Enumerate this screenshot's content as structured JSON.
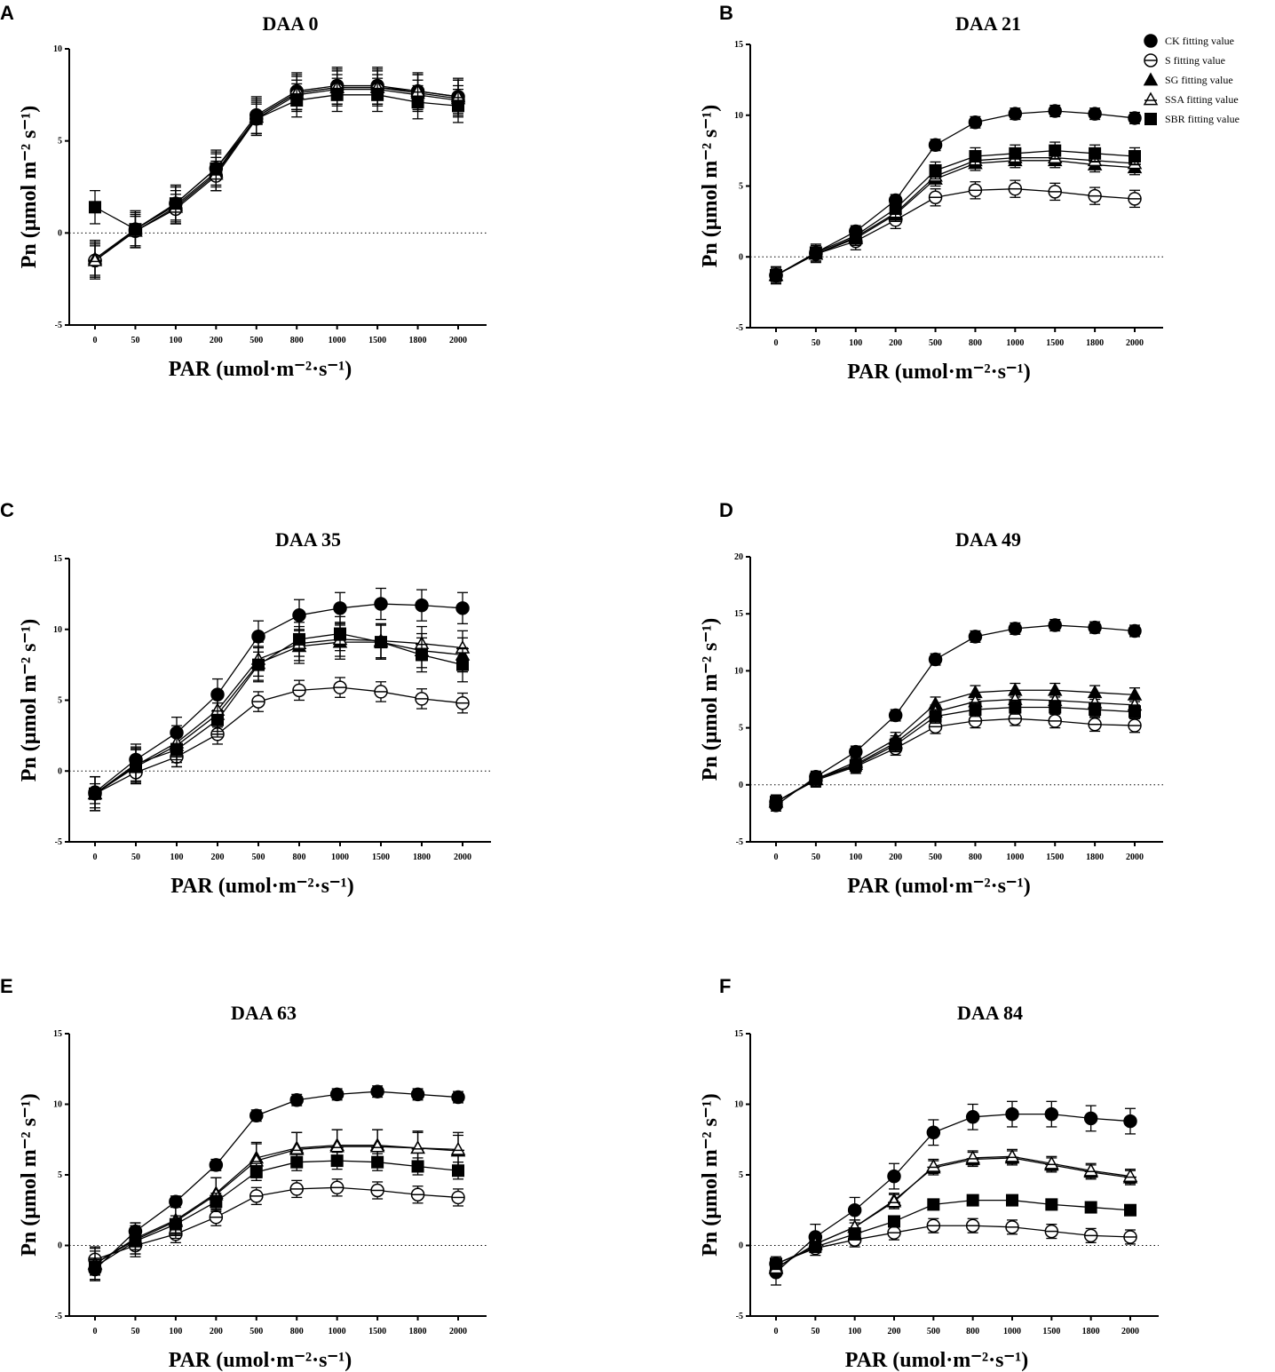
{
  "chart_data": [
    {
      "panel": "A",
      "type": "line",
      "title": "DAA 0",
      "ylim": [
        -5,
        10
      ],
      "yticks": [
        -5,
        0,
        5,
        10
      ],
      "series": [
        {
          "name": "CK fitting value",
          "values": [
            -1.5,
            0.2,
            1.6,
            3.5,
            6.4,
            7.7,
            8.0,
            8.0,
            7.7,
            7.4
          ],
          "err": 1.0
        },
        {
          "name": "S fitting value",
          "values": [
            -1.5,
            0.1,
            1.3,
            3.1,
            6.2,
            7.5,
            7.8,
            7.8,
            7.5,
            7.2
          ],
          "err": 0.8
        },
        {
          "name": "SG fitting value",
          "values": [
            -1.4,
            0.2,
            1.5,
            3.3,
            6.3,
            7.6,
            7.9,
            7.9,
            7.6,
            7.3
          ],
          "err": 1.0
        },
        {
          "name": "SSA fitting value",
          "values": [
            -1.5,
            0.1,
            1.4,
            3.2,
            6.3,
            7.6,
            7.9,
            7.9,
            7.7,
            7.4
          ],
          "err": 0.9
        },
        {
          "name": "SBR fitting value",
          "values": [
            1.4,
            0.2,
            1.6,
            3.5,
            6.2,
            7.2,
            7.5,
            7.5,
            7.1,
            6.9
          ],
          "err": 0.9
        }
      ]
    },
    {
      "panel": "B",
      "type": "line",
      "title": "DAA 21",
      "ylim": [
        -5,
        15
      ],
      "yticks": [
        -5,
        0,
        5,
        10,
        15
      ],
      "series": [
        {
          "name": "CK fitting value",
          "values": [
            -1.3,
            0.3,
            1.8,
            4.0,
            7.9,
            9.5,
            10.1,
            10.3,
            10.1,
            9.8
          ],
          "err": 0.4
        },
        {
          "name": "S fitting value",
          "values": [
            -1.3,
            0.2,
            1.1,
            2.6,
            4.2,
            4.7,
            4.8,
            4.6,
            4.3,
            4.1
          ],
          "err": 0.6
        },
        {
          "name": "SG fitting value",
          "values": [
            -1.3,
            0.2,
            1.3,
            3.0,
            5.5,
            6.6,
            6.8,
            6.8,
            6.5,
            6.3
          ],
          "err": 0.5
        },
        {
          "name": "SSA fitting value",
          "values": [
            -1.3,
            0.2,
            1.4,
            3.1,
            5.7,
            6.8,
            7.0,
            7.0,
            6.8,
            6.6
          ],
          "err": 0.5
        },
        {
          "name": "SBR fitting value",
          "values": [
            -1.3,
            0.3,
            1.5,
            3.4,
            6.1,
            7.1,
            7.3,
            7.5,
            7.3,
            7.1
          ],
          "err": 0.6
        }
      ]
    },
    {
      "panel": "C",
      "type": "line",
      "title": "DAA 35",
      "ylim": [
        -5,
        15
      ],
      "yticks": [
        -5,
        0,
        5,
        10,
        15
      ],
      "series": [
        {
          "name": "CK fitting value",
          "values": [
            -1.5,
            0.8,
            2.7,
            5.4,
            9.5,
            11.0,
            11.5,
            11.8,
            11.7,
            11.5
          ],
          "err": 1.1
        },
        {
          "name": "S fitting value",
          "values": [
            -1.6,
            -0.1,
            1.0,
            2.6,
            4.9,
            5.7,
            5.9,
            5.6,
            5.1,
            4.8
          ],
          "err": 0.7
        },
        {
          "name": "SG fitting value",
          "values": [
            -1.6,
            0.3,
            1.8,
            4.0,
            7.6,
            8.8,
            9.1,
            9.1,
            8.5,
            8.2
          ],
          "err": 1.2
        },
        {
          "name": "SSA fitting value",
          "values": [
            -1.6,
            0.4,
            2.0,
            4.3,
            7.9,
            9.0,
            9.3,
            9.2,
            9.0,
            8.7
          ],
          "err": 1.2
        },
        {
          "name": "SBR fitting value",
          "values": [
            -1.6,
            0.5,
            1.5,
            3.6,
            7.5,
            9.3,
            9.7,
            9.1,
            8.2,
            7.5
          ],
          "err": 1.2
        }
      ]
    },
    {
      "panel": "D",
      "type": "line",
      "title": "DAA 49",
      "ylim": [
        -5,
        20
      ],
      "yticks": [
        -5,
        0,
        5,
        10,
        15,
        20
      ],
      "series": [
        {
          "name": "CK fitting value",
          "values": [
            -1.8,
            0.7,
            2.9,
            6.1,
            11.0,
            13.0,
            13.7,
            14.0,
            13.8,
            13.5
          ],
          "err": 0.5
        },
        {
          "name": "S fitting value",
          "values": [
            -1.5,
            0.4,
            1.6,
            3.2,
            5.1,
            5.6,
            5.8,
            5.6,
            5.3,
            5.2
          ],
          "err": 0.6
        },
        {
          "name": "SG fitting value",
          "values": [
            -1.5,
            0.5,
            2.0,
            4.0,
            7.1,
            8.1,
            8.3,
            8.3,
            8.1,
            7.9
          ],
          "err": 0.6
        },
        {
          "name": "SSA fitting value",
          "values": [
            -1.5,
            0.5,
            1.8,
            3.7,
            6.4,
            7.3,
            7.5,
            7.4,
            7.2,
            7.0
          ],
          "err": 0.6
        },
        {
          "name": "SBR fitting value",
          "values": [
            -1.5,
            0.5,
            1.7,
            3.5,
            6.0,
            6.6,
            6.8,
            6.8,
            6.6,
            6.4
          ],
          "err": 0.6
        }
      ]
    },
    {
      "panel": "E",
      "type": "line",
      "title": "DAA 63",
      "ylim": [
        -5,
        15
      ],
      "yticks": [
        -5,
        0,
        5,
        10,
        15
      ],
      "series": [
        {
          "name": "CK fitting value",
          "values": [
            -1.7,
            1.0,
            3.1,
            5.7,
            9.2,
            10.3,
            10.7,
            10.9,
            10.7,
            10.5
          ],
          "err": 0.4
        },
        {
          "name": "S fitting value",
          "values": [
            -1.0,
            0.0,
            0.8,
            2.0,
            3.5,
            4.0,
            4.1,
            3.9,
            3.6,
            3.4
          ],
          "err": 0.6
        },
        {
          "name": "SG fitting value",
          "values": [
            -1.3,
            0.5,
            1.8,
            3.7,
            6.2,
            6.9,
            7.1,
            7.1,
            6.9,
            6.7
          ],
          "err": 1.1
        },
        {
          "name": "SSA fitting value",
          "values": [
            -1.3,
            0.4,
            1.7,
            3.6,
            6.0,
            6.8,
            7.0,
            7.0,
            6.9,
            6.8
          ],
          "err": 1.2
        },
        {
          "name": "SBR fitting value",
          "values": [
            -1.5,
            0.3,
            1.5,
            3.1,
            5.2,
            5.9,
            6.0,
            5.9,
            5.6,
            5.3
          ],
          "err": 0.6
        }
      ]
    },
    {
      "panel": "F",
      "type": "line",
      "title": "DAA 84",
      "ylim": [
        -5,
        15
      ],
      "yticks": [
        -5,
        0,
        5,
        10,
        15
      ],
      "series": [
        {
          "name": "CK fitting value",
          "values": [
            -1.9,
            0.6,
            2.5,
            4.9,
            8.0,
            9.1,
            9.3,
            9.3,
            9.0,
            8.8
          ],
          "err": 0.9
        },
        {
          "name": "S fitting value",
          "values": [
            -1.3,
            -0.2,
            0.4,
            0.9,
            1.4,
            1.4,
            1.3,
            1.0,
            0.7,
            0.6
          ],
          "err": 0.5
        },
        {
          "name": "SG fitting value",
          "values": [
            -1.6,
            0.1,
            1.3,
            3.2,
            5.5,
            6.1,
            6.2,
            5.7,
            5.2,
            4.8
          ],
          "err": 0.5
        },
        {
          "name": "SSA fitting value",
          "values": [
            -1.6,
            0.1,
            1.3,
            3.1,
            5.6,
            6.2,
            6.3,
            5.8,
            5.3,
            4.9
          ],
          "err": 0.5
        },
        {
          "name": "SBR fitting value",
          "values": [
            -1.3,
            -0.1,
            0.8,
            1.7,
            2.9,
            3.2,
            3.2,
            2.9,
            2.7,
            2.5
          ],
          "err": 0.3
        }
      ]
    }
  ],
  "categories": [
    "0",
    "50",
    "100",
    "200",
    "500",
    "800",
    "1000",
    "1500",
    "1800",
    "2000"
  ],
  "xlabel": "PAR (umol·m⁻²·s⁻¹)",
  "ylabel": "Pn (µmol m⁻² s⁻¹)",
  "legend": {
    "placement": "top-right",
    "entries": [
      "CK fitting value",
      "S fitting value",
      "SG fitting value",
      "SSA fitting value",
      "SBR fitting value"
    ]
  },
  "markers": [
    "filled-circle",
    "open-circle",
    "filled-triangle",
    "open-triangle",
    "filled-square"
  ],
  "color": "#000000"
}
